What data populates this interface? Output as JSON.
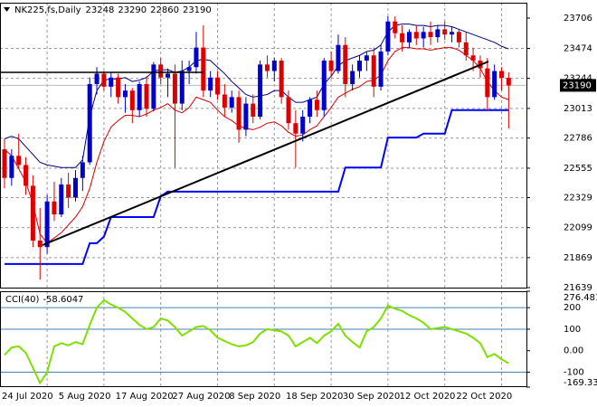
{
  "chart_data": {
    "type": "candlestick",
    "title": "NK225,fs,Daily",
    "categories": [
      "24 Jul 2020",
      null,
      null,
      null,
      null,
      null,
      null,
      null,
      "5 Aug 2020",
      null,
      null,
      null,
      null,
      null,
      null,
      null,
      "17 Aug 2020",
      null,
      null,
      null,
      null,
      null,
      null,
      null,
      "27 Aug 2020",
      null,
      null,
      null,
      null,
      null,
      null,
      null,
      "8 Sep 2020",
      null,
      null,
      null,
      null,
      null,
      null,
      null,
      "18 Sep 2020",
      null,
      null,
      null,
      null,
      null,
      null,
      null,
      "30 Sep 2020",
      null,
      null,
      null,
      null,
      null,
      null,
      null,
      "12 Oct 2020",
      null,
      null,
      null,
      null,
      null,
      null,
      null,
      "22 Oct 2020",
      null,
      null,
      null,
      null,
      null,
      null,
      null
    ],
    "open": [
      22700,
      22480,
      22650,
      22580,
      22420,
      22000,
      21950,
      22300,
      22200,
      22430,
      22330,
      22480,
      22600,
      23200,
      23280,
      23180,
      23250,
      23100,
      23150,
      23000,
      23200,
      23010,
      23350,
      23250,
      23280,
      23050,
      23300,
      23330,
      23480,
      23150,
      23250,
      23120,
      23020,
      23100,
      22850,
      23050,
      22950,
      23350,
      23300,
      23380,
      23100,
      22900,
      22820,
      22950,
      23080,
      23000,
      23380,
      23300,
      23500,
      23200,
      23300,
      23380,
      23420,
      23180,
      23450,
      23680,
      23590,
      23520,
      23600,
      23550,
      23600,
      23560,
      23620,
      23580,
      23600,
      23520,
      23420,
      23380,
      23320,
      23100,
      23300,
      23248
    ],
    "high": [
      22780,
      22700,
      22820,
      22640,
      22500,
      22250,
      22350,
      22450,
      22480,
      22520,
      22540,
      22650,
      23250,
      23330,
      23300,
      23290,
      23280,
      23200,
      23170,
      23220,
      23260,
      23370,
      23400,
      23320,
      23350,
      23380,
      23380,
      23600,
      23650,
      23300,
      23300,
      23200,
      23150,
      23150,
      23100,
      23120,
      23380,
      23420,
      23400,
      23400,
      23150,
      23000,
      23000,
      23100,
      23150,
      23400,
      23450,
      23580,
      23560,
      23350,
      23420,
      23450,
      23480,
      23500,
      23720,
      23720,
      23650,
      23620,
      23650,
      23640,
      23680,
      23650,
      23680,
      23640,
      23620,
      23600,
      23480,
      23420,
      23400,
      23350,
      23330,
      23290
    ],
    "low": [
      22400,
      22420,
      22550,
      22350,
      21950,
      21700,
      21900,
      22150,
      22180,
      22250,
      22300,
      22380,
      22580,
      23120,
      23150,
      23100,
      23050,
      22980,
      22900,
      22950,
      22950,
      22990,
      23200,
      23100,
      22560,
      23000,
      23200,
      23280,
      23100,
      23100,
      23080,
      22950,
      22980,
      22750,
      22800,
      22900,
      22930,
      23250,
      23220,
      23050,
      22850,
      22560,
      22760,
      22900,
      22950,
      22950,
      23250,
      23280,
      23100,
      23150,
      23250,
      23300,
      23100,
      23150,
      23420,
      23550,
      23450,
      23480,
      23500,
      23480,
      23500,
      23520,
      23540,
      23520,
      23480,
      23380,
      23300,
      23250,
      23000,
      23080,
      23150,
      22860
    ],
    "close": [
      22480,
      22650,
      22580,
      22420,
      22000,
      21950,
      22300,
      22200,
      22430,
      22330,
      22480,
      22600,
      23200,
      23280,
      23180,
      23250,
      23100,
      23150,
      23000,
      23200,
      23010,
      23350,
      23250,
      23280,
      23050,
      23300,
      23330,
      23480,
      23150,
      23250,
      23120,
      23020,
      23100,
      22850,
      23050,
      22950,
      23350,
      23300,
      23380,
      23100,
      22900,
      22820,
      22950,
      23080,
      23000,
      23380,
      23300,
      23500,
      23200,
      23300,
      23380,
      23420,
      23180,
      23450,
      23680,
      23590,
      23520,
      23600,
      23550,
      23600,
      23560,
      23620,
      23580,
      23600,
      23520,
      23420,
      23380,
      23320,
      23100,
      23300,
      23248,
      23190
    ],
    "color_up": "#0000cc",
    "color_down": "#dd0000",
    "overlays": [
      {
        "color": "#000080",
        "width": 1,
        "values": [
          22780,
          22800,
          22780,
          22720,
          22660,
          22600,
          22580,
          22570,
          22560,
          22560,
          22560,
          22620,
          22950,
          23150,
          23230,
          23240,
          23240,
          23250,
          23220,
          23230,
          23250,
          23300,
          23310,
          23310,
          23290,
          23300,
          23330,
          23380,
          23390,
          23380,
          23330,
          23280,
          23220,
          23170,
          23120,
          23100,
          23110,
          23120,
          23150,
          23150,
          23100,
          23060,
          23060,
          23080,
          23100,
          23200,
          23260,
          23340,
          23380,
          23400,
          23420,
          23450,
          23460,
          23500,
          23600,
          23650,
          23660,
          23660,
          23650,
          23650,
          23640,
          23650,
          23650,
          23640,
          23620,
          23600,
          23580,
          23560,
          23540,
          23520,
          23490,
          23470
        ]
      },
      {
        "color": "#dd0000",
        "width": 1,
        "values": [
          22700,
          22650,
          22550,
          22450,
          22280,
          22050,
          21980,
          22020,
          22060,
          22120,
          22180,
          22260,
          22400,
          22600,
          22760,
          22870,
          22920,
          22960,
          22960,
          22950,
          22970,
          23000,
          23020,
          23050,
          23000,
          22980,
          23020,
          23100,
          23080,
          23060,
          23000,
          22950,
          22920,
          22880,
          22860,
          22850,
          22870,
          22900,
          22910,
          22880,
          22830,
          22800,
          22810,
          22850,
          22880,
          22950,
          23020,
          23100,
          23130,
          23160,
          23180,
          23220,
          23230,
          23270,
          23380,
          23450,
          23480,
          23480,
          23470,
          23470,
          23460,
          23470,
          23480,
          23480,
          23460,
          23420,
          23380,
          23320,
          23220,
          23150,
          23100,
          23080
        ]
      },
      {
        "color": "#0000ff",
        "width": 2,
        "values": [
          21820,
          21820,
          21820,
          21820,
          21820,
          21820,
          21820,
          21820,
          21820,
          21820,
          21820,
          21820,
          21980,
          21980,
          22030,
          22180,
          22180,
          22180,
          22180,
          22180,
          22180,
          22180,
          22340,
          22375,
          22375,
          22375,
          22375,
          22375,
          22375,
          22375,
          22375,
          22375,
          22375,
          22375,
          22375,
          22375,
          22375,
          22375,
          22375,
          22375,
          22375,
          22375,
          22375,
          22375,
          22375,
          22375,
          22375,
          22375,
          22560,
          22560,
          22560,
          22560,
          22560,
          22560,
          22790,
          22790,
          22790,
          22790,
          22790,
          22820,
          22820,
          22820,
          22820,
          23000,
          23000,
          23000,
          23000,
          23000,
          23000,
          23000,
          23000,
          23000
        ]
      }
    ],
    "ylim": [
      21639,
      23824
    ],
    "yticks": [
      23706,
      23474,
      23244,
      23013,
      22786,
      22555,
      22329,
      22099,
      21869,
      21639
    ],
    "grid": true,
    "indicator": {
      "type": "line",
      "title": "CCI(40)",
      "color": "#7fe000",
      "values": [
        -20,
        15,
        20,
        -10,
        -80,
        -150,
        -100,
        20,
        35,
        25,
        40,
        30,
        120,
        200,
        235,
        215,
        200,
        180,
        150,
        120,
        100,
        110,
        150,
        140,
        110,
        70,
        90,
        110,
        115,
        95,
        60,
        45,
        30,
        20,
        25,
        40,
        80,
        100,
        95,
        90,
        70,
        20,
        40,
        60,
        35,
        70,
        90,
        125,
        70,
        40,
        15,
        90,
        110,
        150,
        210,
        195,
        185,
        165,
        150,
        130,
        100,
        105,
        110,
        100,
        90,
        80,
        60,
        35,
        -30,
        -15,
        -40,
        -58.6047
      ],
      "ylim": [
        -169.336,
        276.4817
      ],
      "yticks": [
        276.4817,
        200,
        100,
        {
          "value": 0,
          "label": "0.00"
        },
        -100,
        -169.336
      ],
      "levels": [
        200,
        100,
        -100
      ],
      "level_color": "#4682b4"
    }
  }
}
